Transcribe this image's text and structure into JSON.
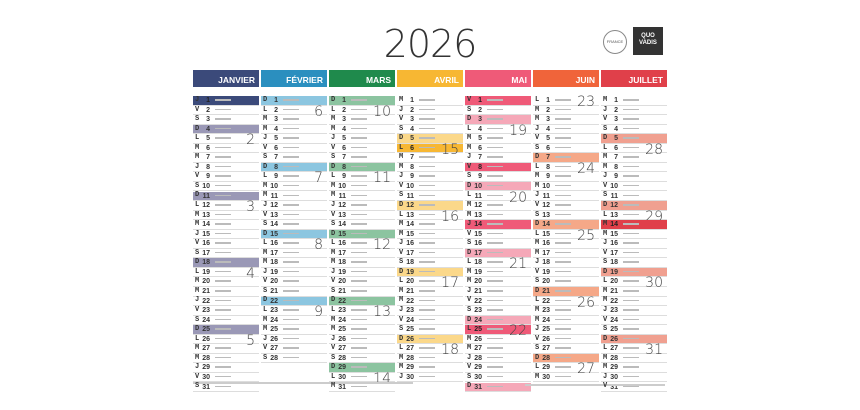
{
  "year": "2026",
  "logo": "QUO VADIS",
  "seal": "FRANCE",
  "months": [
    {
      "name": "JANVIER",
      "color": "#3b4a7a",
      "sunday_color": "#9a98b6",
      "letters": "JVSDLMMJVSDLMMJVSDLMMJVSDLMMJVS",
      "holidays": [
        1
      ],
      "weeks": {
        "5": "2",
        "12": "3",
        "19": "4",
        "26": "5"
      }
    },
    {
      "name": "FÉVRIER",
      "color": "#2b8fbf",
      "sunday_color": "#8cc6e0",
      "letters": "DLMMJVSDLMMJVSDLMMJVSDLMMJVS",
      "holidays": [],
      "weeks": {
        "2": "6",
        "9": "7",
        "16": "8",
        "23": "9"
      }
    },
    {
      "name": "MARS",
      "color": "#1f8a4c",
      "sunday_color": "#8cc4a0",
      "letters": "DLMMJVSDLMMJVSDLMMJVSDLMMJVSDLM",
      "holidays": [],
      "weeks": {
        "2": "10",
        "9": "11",
        "16": "12",
        "23": "13",
        "30": "14"
      }
    },
    {
      "name": "AVRIL",
      "color": "#f7b733",
      "sunday_color": "#fbd88a",
      "letters": "MJVSDLMMJVSDLMMJVSDLMMJVSDLMMJ",
      "holidays": [
        6
      ],
      "weeks": {
        "6": "15",
        "13": "16",
        "20": "17",
        "27": "18"
      }
    },
    {
      "name": "MAI",
      "color": "#ef5a78",
      "sunday_color": "#f5a8b8",
      "letters": "VSDLMMJVSDLMMJVSDLMMJVSDLMMJVSD",
      "holidays": [
        1,
        8,
        14,
        25
      ],
      "weeks": {
        "4": "19",
        "11": "20",
        "18": "21",
        "25": "22"
      }
    },
    {
      "name": "JUIN",
      "color": "#f0643a",
      "sunday_color": "#f5a888",
      "letters": "LMMJVSDLMMJVSDLMMJVSDLMMJVSDLM",
      "holidays": [],
      "weeks": {
        "1": "23",
        "8": "24",
        "15": "25",
        "22": "26",
        "29": "27"
      }
    },
    {
      "name": "JUILLET",
      "color": "#e0404a",
      "sunday_color": "#f0a090",
      "letters": "MJVSDLMMJVSDLMMJVSDLMMJVSDLMMJV",
      "holidays": [
        14
      ],
      "weeks": {
        "6": "28",
        "13": "29",
        "20": "30",
        "27": "31"
      }
    }
  ]
}
